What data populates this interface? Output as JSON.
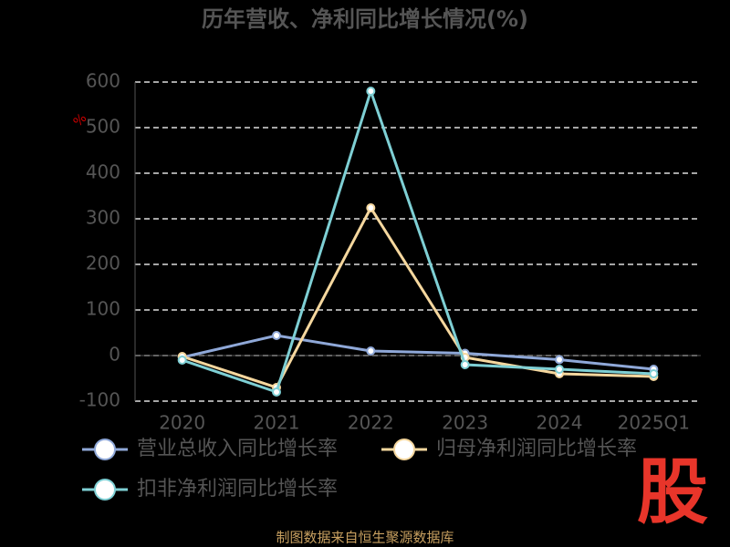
{
  "chart_data": {
    "type": "line",
    "title": "历年营收、净利同比增长情况(%)",
    "y_unit": "%",
    "categories": [
      "2020",
      "2021",
      "2022",
      "2023",
      "2024",
      "2025Q1"
    ],
    "series": [
      {
        "name": "营业总收入同比增长率",
        "color": "#8fa8d8",
        "values": [
          -4,
          44,
          10,
          5,
          -9,
          -30
        ]
      },
      {
        "name": "归母净利润同比增长率",
        "color": "#f5d79e",
        "values": [
          -2,
          -70,
          324,
          -4,
          -40,
          -46
        ]
      },
      {
        "name": "扣非净利润同比增长率",
        "color": "#7ecfd4",
        "values": [
          -10,
          -80,
          580,
          -20,
          -30,
          -40
        ]
      }
    ],
    "ylim": [
      -100,
      600
    ],
    "yticks": [
      -100,
      0,
      100,
      200,
      300,
      400,
      500,
      600
    ],
    "grid": true,
    "footer": "制图数据来自恒生聚源数据库",
    "logo": "股"
  }
}
